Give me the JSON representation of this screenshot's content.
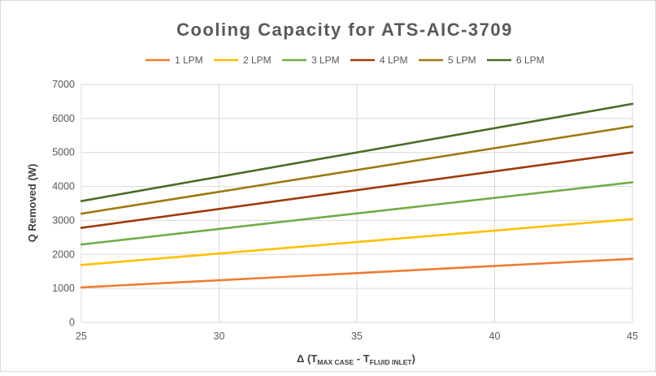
{
  "chart_data": {
    "type": "line",
    "title": "Cooling Capacity for ATS-AIC-3709",
    "ylabel": "Q Removed (W)",
    "xlabel": {
      "prefix": "Δ (T",
      "sub1": "MAX CASE",
      "mid": " - T",
      "sub2": "FLUID INLET",
      "suffix": ")"
    },
    "xlim": [
      25,
      45
    ],
    "ylim": [
      0,
      7000
    ],
    "x_ticks": [
      "25",
      "30",
      "35",
      "40",
      "45"
    ],
    "y_ticks": [
      "0",
      "1000",
      "2000",
      "3000",
      "4000",
      "5000",
      "6000",
      "7000"
    ],
    "grid": true,
    "legend_position": "top",
    "x": [
      25,
      45
    ],
    "series": [
      {
        "name": "1 LPM",
        "color": "#ED7D31",
        "values": [
          1030,
          1870
        ]
      },
      {
        "name": "2 LPM",
        "color": "#FFC000",
        "values": [
          1690,
          3040
        ]
      },
      {
        "name": "3 LPM",
        "color": "#70AD47",
        "values": [
          2290,
          4120
        ]
      },
      {
        "name": "4 LPM",
        "color": "#9E3B0A",
        "values": [
          2780,
          5000
        ]
      },
      {
        "name": "5 LPM",
        "color": "#9C7A10",
        "values": [
          3200,
          5770
        ]
      },
      {
        "name": "6 LPM",
        "color": "#4A6B25",
        "values": [
          3570,
          6430
        ]
      }
    ]
  }
}
